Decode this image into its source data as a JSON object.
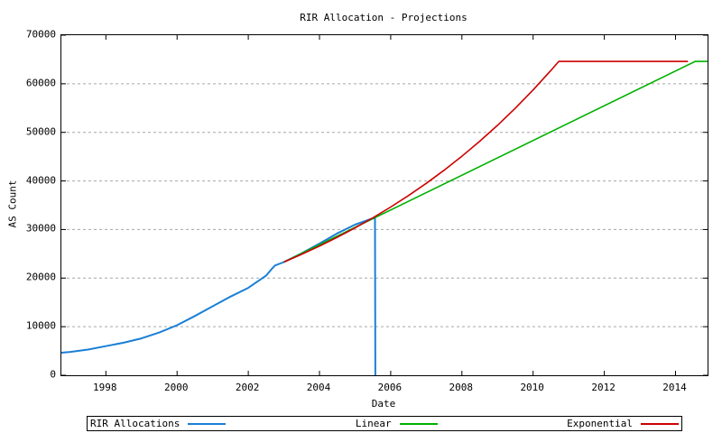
{
  "chart_data": {
    "type": "line",
    "title": "RIR Allocation - Projections",
    "xlabel": "Date",
    "ylabel": "AS Count",
    "xlim": [
      1996.75,
      2014.9
    ],
    "ylim": [
      0,
      70000
    ],
    "xticks": [
      1998,
      2000,
      2002,
      2004,
      2006,
      2008,
      2010,
      2012,
      2014
    ],
    "yticks": [
      0,
      10000,
      20000,
      30000,
      40000,
      50000,
      60000,
      70000
    ],
    "grid": "horizontal-dashed",
    "grid_color": "#a6a6a6",
    "axis_color": "#000000",
    "background_color": "#ffffff",
    "legend_position": "bottom-box",
    "saturation_cap": 64600,
    "series": [
      {
        "name": "RIR Allocations",
        "color": "#1a7fd6",
        "width": 2,
        "points": [
          [
            1996.75,
            4650
          ],
          [
            1997.0,
            4800
          ],
          [
            1997.5,
            5300
          ],
          [
            1998.0,
            6000
          ],
          [
            1998.5,
            6700
          ],
          [
            1999.0,
            7600
          ],
          [
            1999.5,
            8800
          ],
          [
            2000.0,
            10300
          ],
          [
            2000.5,
            12200
          ],
          [
            2001.0,
            14200
          ],
          [
            2001.5,
            16200
          ],
          [
            2002.0,
            18000
          ],
          [
            2002.5,
            20500
          ],
          [
            2002.65,
            21800
          ],
          [
            2002.75,
            22600
          ],
          [
            2003.0,
            23300
          ],
          [
            2003.5,
            25100
          ],
          [
            2004.0,
            27100
          ],
          [
            2004.5,
            29200
          ],
          [
            2005.0,
            31000
          ],
          [
            2005.5,
            32300
          ],
          [
            2005.56,
            32400
          ],
          [
            2005.57,
            0
          ]
        ]
      },
      {
        "name": "Linear",
        "color": "#00b000",
        "width": 1.6,
        "points": [
          [
            2003.0,
            23300
          ],
          [
            2014.55,
            64600
          ],
          [
            2014.9,
            64600
          ]
        ]
      },
      {
        "name": "Exponential",
        "color": "#cc0000",
        "width": 1.6,
        "points": [
          [
            2003.0,
            23300
          ],
          [
            2003.5,
            24890
          ],
          [
            2004.0,
            26590
          ],
          [
            2004.5,
            28400
          ],
          [
            2005.0,
            30340
          ],
          [
            2005.5,
            32410
          ],
          [
            2006.0,
            34630
          ],
          [
            2006.5,
            36990
          ],
          [
            2007.0,
            39520
          ],
          [
            2007.5,
            42210
          ],
          [
            2008.0,
            45090
          ],
          [
            2008.5,
            48170
          ],
          [
            2009.0,
            51460
          ],
          [
            2009.5,
            54970
          ],
          [
            2010.0,
            58730
          ],
          [
            2010.5,
            62740
          ],
          [
            2010.72,
            64600
          ],
          [
            2014.35,
            64600
          ]
        ]
      }
    ]
  }
}
